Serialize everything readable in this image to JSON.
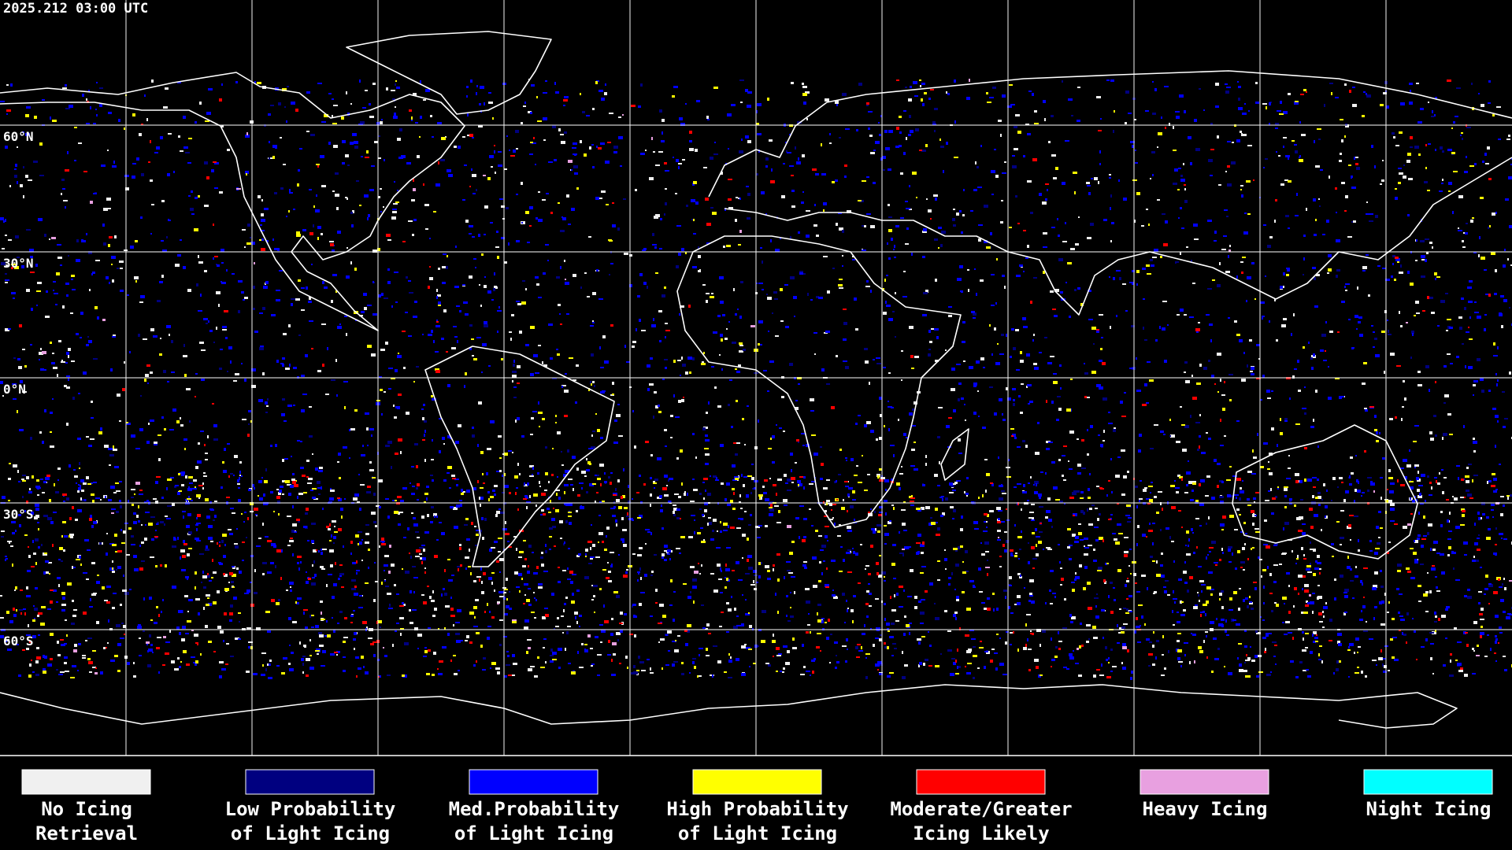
{
  "header": {
    "title": "2025.212 03:00 UTC"
  },
  "map": {
    "latitude_labels": [
      "60°N",
      "30°N",
      "0°N",
      "30°S",
      "60°S"
    ]
  },
  "legend": [
    {
      "color": "#f0f0f0",
      "lines": [
        "No Icing",
        "Retrieval"
      ]
    },
    {
      "color": "#000080",
      "lines": [
        "Low Probability",
        "of Light Icing"
      ]
    },
    {
      "color": "#0000ff",
      "lines": [
        "Med.Probability",
        "of Light Icing"
      ]
    },
    {
      "color": "#ffff00",
      "lines": [
        "High Probability",
        "of Light Icing"
      ]
    },
    {
      "color": "#ff0000",
      "lines": [
        "Moderate/Greater",
        "Icing Likely"
      ]
    },
    {
      "color": "#e8a0e0",
      "lines": [
        "Heavy Icing"
      ]
    },
    {
      "color": "#00ffff",
      "lines": [
        "Night Icing"
      ]
    }
  ]
}
